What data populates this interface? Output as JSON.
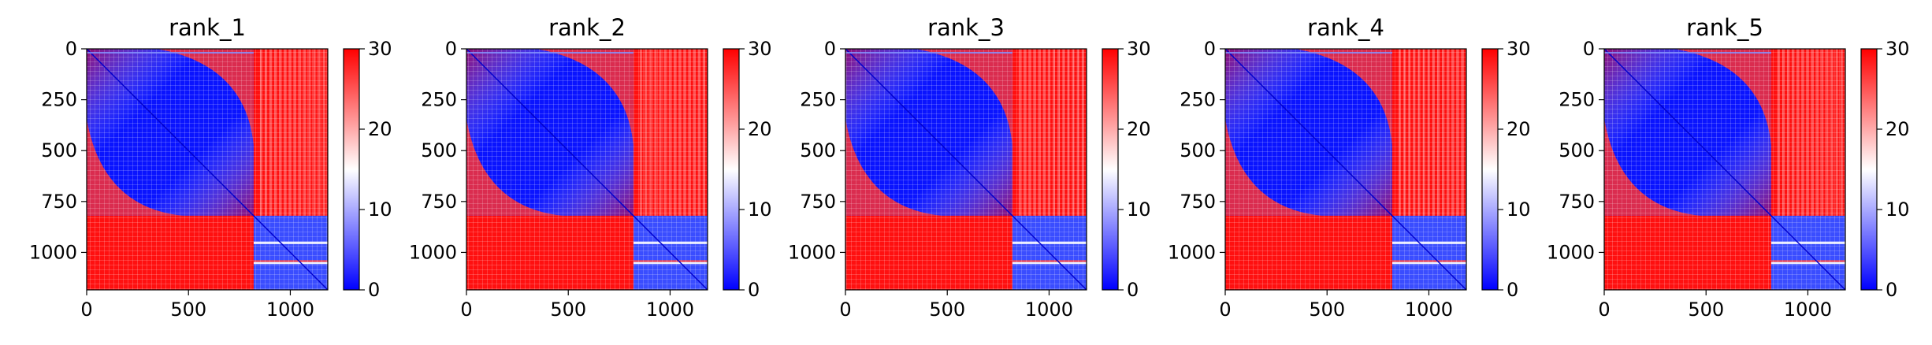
{
  "chart_data": [
    {
      "type": "heatmap",
      "title": "rank_1",
      "x_range": [
        0,
        1184
      ],
      "y_range": [
        0,
        1184
      ],
      "y_inverted": true,
      "x_ticks": [
        "0",
        "500",
        "1000"
      ],
      "y_ticks": [
        "0",
        "250",
        "500",
        "750",
        "1000"
      ],
      "value_range": [
        0,
        30
      ],
      "colorbar_ticks": [
        "0",
        "10",
        "20",
        "30"
      ],
      "colormap": "bwr",
      "block_boundary": 820
    },
    {
      "type": "heatmap",
      "title": "rank_2",
      "x_range": [
        0,
        1184
      ],
      "y_range": [
        0,
        1184
      ],
      "y_inverted": true,
      "x_ticks": [
        "0",
        "500",
        "1000"
      ],
      "y_ticks": [
        "0",
        "250",
        "500",
        "750",
        "1000"
      ],
      "value_range": [
        0,
        30
      ],
      "colorbar_ticks": [
        "0",
        "10",
        "20",
        "30"
      ],
      "colormap": "bwr",
      "block_boundary": 820
    },
    {
      "type": "heatmap",
      "title": "rank_3",
      "x_range": [
        0,
        1184
      ],
      "y_range": [
        0,
        1184
      ],
      "y_inverted": true,
      "x_ticks": [
        "0",
        "500",
        "1000"
      ],
      "y_ticks": [
        "0",
        "250",
        "500",
        "750",
        "1000"
      ],
      "value_range": [
        0,
        30
      ],
      "colorbar_ticks": [
        "0",
        "10",
        "20",
        "30"
      ],
      "colormap": "bwr",
      "block_boundary": 820
    },
    {
      "type": "heatmap",
      "title": "rank_4",
      "x_range": [
        0,
        1184
      ],
      "y_range": [
        0,
        1184
      ],
      "y_inverted": true,
      "x_ticks": [
        "0",
        "500",
        "1000"
      ],
      "y_ticks": [
        "0",
        "250",
        "500",
        "750",
        "1000"
      ],
      "value_range": [
        0,
        30
      ],
      "colorbar_ticks": [
        "0",
        "10",
        "20",
        "30"
      ],
      "colormap": "bwr",
      "block_boundary": 820
    },
    {
      "type": "heatmap",
      "title": "rank_5",
      "x_range": [
        0,
        1184
      ],
      "y_range": [
        0,
        1184
      ],
      "y_inverted": true,
      "x_ticks": [
        "0",
        "500",
        "1000"
      ],
      "y_ticks": [
        "0",
        "250",
        "500",
        "750",
        "1000"
      ],
      "value_range": [
        0,
        30
      ],
      "colorbar_ticks": [
        "0",
        "10",
        "20",
        "30"
      ],
      "colormap": "bwr",
      "block_boundary": 820
    }
  ]
}
